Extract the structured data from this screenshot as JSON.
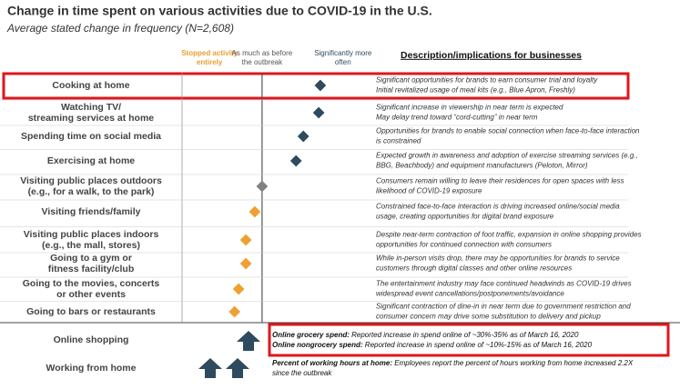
{
  "chart_data": {
    "type": "dot",
    "title": "Change in time spent on various activities due to COVID-19 in the U.S.",
    "subtitle": "Average stated change in frequency (N=2,608)",
    "description_header": "Description/implications for businesses",
    "xlim": [
      -1,
      1.25
    ],
    "xticks": [
      {
        "value": -0.65,
        "label": "Stopped activity entirely",
        "color": "#e8a030"
      },
      {
        "value": 0,
        "label": "As much as before the outbreak",
        "color": "#555555"
      },
      {
        "value": 1,
        "label": "Significantly more often",
        "color": "#2e4a5f"
      }
    ],
    "categories": [
      [
        "Cooking at home"
      ],
      [
        "Watching TV/",
        "streaming services at home"
      ],
      [
        "Spending time on social media"
      ],
      [
        "Exercising at home"
      ],
      [
        "Visiting public places outdoors",
        "(e.g., for a walk, to the park)"
      ],
      [
        "Visiting friends/family"
      ],
      [
        "Visiting public places indoors",
        "(e.g., the mall, stores)"
      ],
      [
        "Going to a gym or",
        "fitness facility/club"
      ],
      [
        "Going to the movies, concerts",
        "or other events"
      ],
      [
        "Going to bars or restaurants"
      ]
    ],
    "values": [
      0.72,
      0.7,
      0.51,
      0.42,
      0,
      -0.09,
      -0.2,
      -0.2,
      -0.29,
      -0.34
    ],
    "colors": [
      "#2e4a5f",
      "#2e4a5f",
      "#2e4a5f",
      "#2e4a5f",
      "#808080",
      "#f0a030",
      "#f0a030",
      "#f0a030",
      "#f0a030",
      "#f0a030"
    ],
    "descriptions": [
      [
        "Significant opportunities for brands to earn consumer trial and loyalty",
        "Initial revitalized usage of meal kits (e.g., Blue Apron, Freshly)"
      ],
      [
        "Significant increase in viewership in near term is expected",
        "May delay trend toward “cord-cutting” in near term"
      ],
      [
        "Opportunities for brands to enable social connection when face-to-face interaction",
        "is constrained"
      ],
      [
        "Expected growth in awareness and adoption of exercise streaming services (e.g.,",
        "BBG, Beachbody) and equipment manufacturers (Peloton, Mirror)"
      ],
      [
        "Consumers remain willing to leave their residences for open spaces with less",
        "likelihood of COVID-19 exposure"
      ],
      [
        "Constrained face-to-face interaction is driving increased online/social media",
        "usage, creating opportunities for digital brand exposure"
      ],
      [
        "Despite near-term contraction of foot traffic, expansion in online shopping provides",
        "opportunities for continued connection with consumers"
      ],
      [
        "While in-person visits drop, there may be opportunities for brands to service",
        "customers through digital classes and other online resources"
      ],
      [
        "The entertainment industry may face continued headwinds as COVID-19 drives",
        "widespread event cancellations/postponements/avoidance"
      ],
      [
        "Significant contraction of dine-in in near term due to government restriction and",
        "consumer concern may drive some substitution to delivery and pickup"
      ]
    ],
    "extra_rows": [
      {
        "label": "Online shopping",
        "notes": [
          {
            "bold": "Online grocery spend:",
            "text": " Reported increase in spend online of ~30%-35% as of March 16, 2020"
          },
          {
            "bold": "Online nongrocery spend:",
            "text": " Reported increase in spend online of ~10%-15% as of March 16, 2020"
          }
        ]
      },
      {
        "label": "Working from home",
        "notes": [
          {
            "bold": "Percent of working hours at home:",
            "text": " Employees report the percent of hours working from home increased 2.2X"
          },
          {
            "bold": "",
            "text": "since the outbreak"
          }
        ]
      }
    ]
  }
}
